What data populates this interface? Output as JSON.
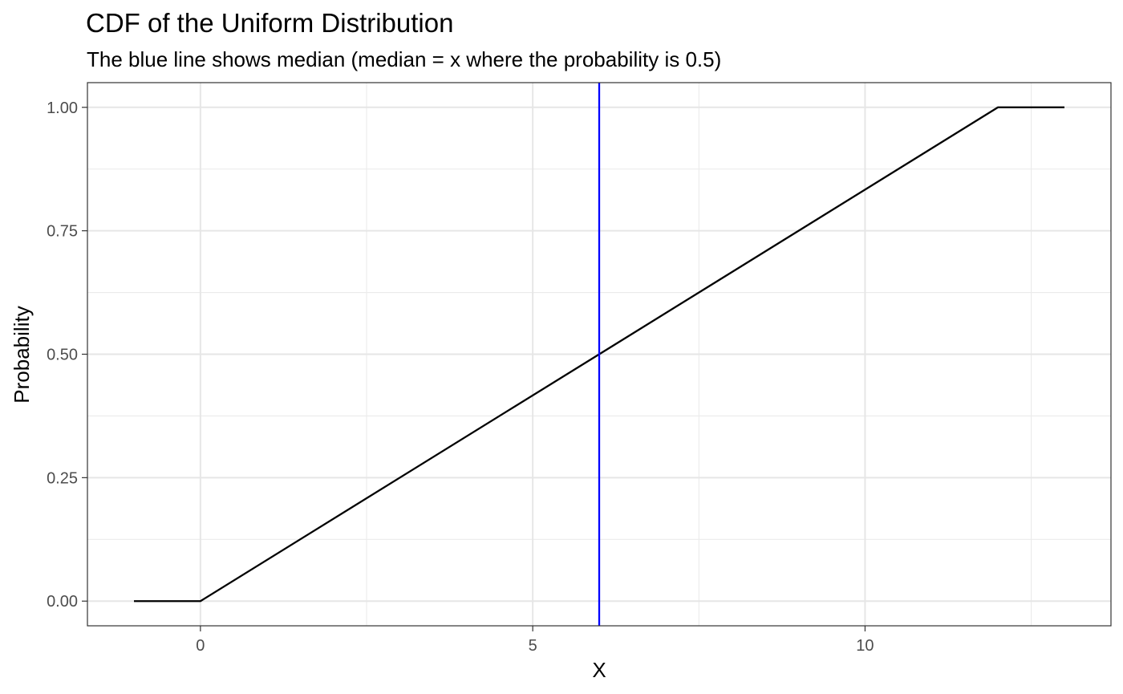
{
  "chart_data": {
    "type": "line",
    "title": "CDF of the Uniform Distribution",
    "subtitle": "The blue line shows median (median = x where the probability is 0.5)",
    "xlabel": "X",
    "ylabel": "Probability",
    "xlim": [
      -1.7,
      13.7
    ],
    "ylim": [
      -0.05,
      1.05
    ],
    "x_ticks": [
      {
        "value": 0,
        "label": "0"
      },
      {
        "value": 5,
        "label": "5"
      },
      {
        "value": 10,
        "label": "10"
      }
    ],
    "x_minor_ticks": [
      -2.5,
      2.5,
      7.5,
      12.5
    ],
    "y_ticks": [
      {
        "value": 0,
        "label": "0.00"
      },
      {
        "value": 0.25,
        "label": "0.25"
      },
      {
        "value": 0.5,
        "label": "0.50"
      },
      {
        "value": 0.75,
        "label": "0.75"
      },
      {
        "value": 1,
        "label": "1.00"
      }
    ],
    "y_minor_ticks": [
      0.125,
      0.375,
      0.625,
      0.875
    ],
    "grid": true,
    "series": [
      {
        "color": "#000000",
        "x": [
          -1,
          0,
          12,
          13
        ],
        "y": [
          0,
          0,
          1,
          1
        ]
      }
    ],
    "vline": {
      "x": 6,
      "color": "#0000ff"
    }
  }
}
